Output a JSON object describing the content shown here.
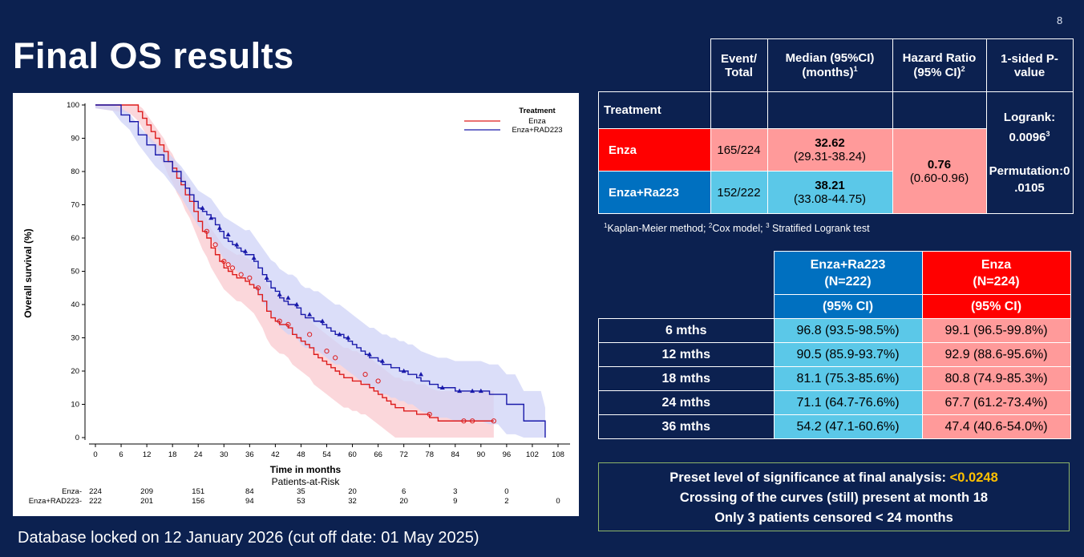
{
  "slide_number": "8",
  "title": "Final OS results",
  "footer": "Database locked on 12 January 2026 (cut off date: 01 May 2025)",
  "colors": {
    "enza": "#dd1c1c",
    "enza_ra": "#1a1aaa",
    "enza_band": "#f9c9cf",
    "enza_ra_band": "#cfd3f7",
    "background": "#0c2150"
  },
  "chart_data": {
    "type": "line",
    "title": "",
    "xlabel": "Time in months",
    "ylabel": "Overall survival (%)",
    "xlim": [
      0,
      108
    ],
    "ylim": [
      0,
      100
    ],
    "xticks": [
      0,
      6,
      12,
      18,
      24,
      30,
      36,
      42,
      48,
      54,
      60,
      66,
      72,
      78,
      84,
      90,
      96,
      102,
      108
    ],
    "yticks": [
      0,
      10,
      20,
      30,
      40,
      50,
      60,
      70,
      80,
      90,
      100
    ],
    "legend": {
      "title": "Treatment",
      "position": "top-right"
    },
    "series": [
      {
        "name": "Enza",
        "color": "#dd1c1c",
        "x": [
          0,
          4,
          8,
          10,
          11,
          12,
          13,
          14,
          15,
          16,
          17,
          18,
          19,
          20,
          21,
          22,
          23,
          24,
          25,
          26,
          27,
          28,
          29,
          30,
          31,
          32,
          33,
          34,
          35,
          36,
          37,
          38,
          39,
          40,
          41,
          42,
          43,
          44,
          45,
          46,
          47,
          48,
          49,
          50,
          51,
          52,
          53,
          54,
          55,
          56,
          57,
          58,
          59,
          60,
          61,
          62,
          63,
          64,
          65,
          66,
          67,
          68,
          69,
          70,
          71,
          72,
          73,
          74,
          75,
          76,
          77,
          78,
          80,
          82,
          84,
          86,
          88,
          90,
          92,
          93
        ],
        "y": [
          100,
          100,
          100,
          98,
          96,
          94,
          92,
          90,
          88,
          86,
          83,
          81,
          78,
          76,
          73,
          71,
          68,
          65,
          62,
          60,
          57,
          55,
          53,
          51,
          50,
          49,
          48,
          48,
          47,
          46,
          45,
          43,
          41,
          38,
          36,
          35,
          34,
          34,
          33,
          31,
          30,
          29,
          28,
          27,
          25,
          24,
          23,
          22,
          21,
          20,
          19,
          18,
          18,
          17,
          17,
          16,
          16,
          15,
          14,
          13,
          12,
          11,
          10,
          9,
          9,
          8,
          8,
          8,
          7,
          7,
          7,
          6,
          5,
          5,
          5,
          5,
          5,
          5,
          5,
          5
        ],
        "censored": [
          [
            26,
            62
          ],
          [
            28,
            58
          ],
          [
            30,
            53
          ],
          [
            31,
            52
          ],
          [
            32,
            51
          ],
          [
            34,
            49
          ],
          [
            36,
            48
          ],
          [
            38,
            45
          ],
          [
            43,
            35
          ],
          [
            45,
            34
          ],
          [
            50,
            31
          ],
          [
            54,
            26
          ],
          [
            56,
            24
          ],
          [
            63,
            19
          ],
          [
            66,
            17
          ],
          [
            78,
            7
          ],
          [
            86,
            5
          ],
          [
            88,
            5
          ],
          [
            93,
            5
          ]
        ]
      },
      {
        "name": "Enza+RAD223",
        "color": "#1a1aaa",
        "x": [
          0,
          4,
          6,
          8,
          10,
          12,
          14,
          16,
          18,
          20,
          21,
          22,
          23,
          24,
          25,
          26,
          27,
          28,
          29,
          30,
          31,
          32,
          33,
          34,
          35,
          36,
          37,
          38,
          39,
          40,
          41,
          42,
          43,
          44,
          45,
          46,
          47,
          48,
          49,
          50,
          51,
          52,
          53,
          54,
          55,
          56,
          57,
          58,
          59,
          60,
          61,
          62,
          63,
          64,
          65,
          66,
          67,
          68,
          69,
          70,
          71,
          72,
          73,
          74,
          75,
          76,
          78,
          80,
          82,
          84,
          86,
          88,
          90,
          92,
          94,
          96,
          98,
          100,
          102,
          104,
          105
        ],
        "y": [
          100,
          100,
          97,
          95,
          91,
          88,
          85,
          83,
          80,
          77,
          75,
          73,
          71,
          69,
          68,
          67,
          66,
          64,
          62,
          60,
          59,
          58,
          57,
          56,
          55,
          55,
          53,
          51,
          49,
          47,
          45,
          44,
          42,
          41,
          40,
          40,
          39,
          37,
          36,
          36,
          35,
          35,
          34,
          33,
          32,
          31,
          31,
          30,
          29,
          28,
          27,
          26,
          25,
          24,
          24,
          23,
          22,
          22,
          21,
          21,
          20,
          20,
          19,
          19,
          18,
          17,
          16,
          15,
          15,
          14,
          14,
          14,
          14,
          13,
          13,
          10,
          10,
          5,
          5,
          5,
          0
        ],
        "censored": [
          [
            25,
            69
          ],
          [
            27,
            66
          ],
          [
            29,
            63
          ],
          [
            31,
            61
          ],
          [
            33,
            58
          ],
          [
            35,
            56
          ],
          [
            37,
            54
          ],
          [
            40,
            48
          ],
          [
            43,
            43
          ],
          [
            45,
            42
          ],
          [
            47,
            40
          ],
          [
            50,
            37
          ],
          [
            53,
            35
          ],
          [
            57,
            31
          ],
          [
            59,
            30
          ],
          [
            64,
            25
          ],
          [
            67,
            23
          ],
          [
            72,
            20
          ],
          [
            76,
            19
          ],
          [
            81,
            15
          ],
          [
            85,
            14
          ],
          [
            88,
            14
          ],
          [
            90,
            14
          ]
        ]
      }
    ],
    "risk_table": {
      "title": "Patients-at-Risk",
      "times": [
        0,
        12,
        24,
        36,
        48,
        60,
        72,
        84,
        96,
        108
      ],
      "rows": [
        {
          "label": "Enza-",
          "counts": [
            "224",
            "209",
            "151",
            "84",
            "35",
            "20",
            "6",
            "3",
            "0",
            ""
          ]
        },
        {
          "label": "Enza+RAD223-",
          "counts": [
            "222",
            "201",
            "156",
            "94",
            "53",
            "32",
            "20",
            "9",
            "2",
            "0"
          ]
        }
      ]
    }
  },
  "table1": {
    "headers": {
      "event": [
        "Event/",
        "Total"
      ],
      "median": [
        "Median (95%CI)",
        "(months)"
      ],
      "median_sup": "1",
      "hr": [
        "Hazard Ratio",
        "(95% CI)"
      ],
      "hr_sup": "2",
      "pvalue": [
        "1-sided P-",
        "value"
      ]
    },
    "treatment_label": "Treatment",
    "rows": [
      {
        "name": "Enza",
        "event": "165/224",
        "median": "32.62",
        "median_ci": "(29.31-38.24)"
      },
      {
        "name": "Enza+Ra223",
        "event": "152/222",
        "median": "38.21",
        "median_ci": "(33.08-44.75)"
      }
    ],
    "hr": "0.76",
    "hr_ci": "(0.60-0.96)",
    "logrank": "Logrank:",
    "logrank_value": "0.0096",
    "logrank_sup": "3",
    "permutation": "Permutation:0",
    "permutation_value": ".0105"
  },
  "footnote": {
    "s1": "1",
    "t1": "Kaplan-Meier method; ",
    "s2": "2",
    "t2": "Cox model; ",
    "s3": "3",
    "t3": " Stratified Logrank test"
  },
  "table2": {
    "col_ra": [
      "Enza+Ra223",
      "(N=222)"
    ],
    "col_enza": [
      "Enza",
      "(N=224)"
    ],
    "ci_label": "(95%  CI)",
    "rows": [
      {
        "label": "6 mths",
        "ra": "96.8 (93.5-98.5%)",
        "enza": "99.1 (96.5-99.8%)"
      },
      {
        "label": "12 mths",
        "ra": "90.5 (85.9-93.7%)",
        "enza": "92.9 (88.6-95.6%)"
      },
      {
        "label": "18 mths",
        "ra": "81.1 (75.3-85.6%)",
        "enza": "80.8 (74.9-85.3%)"
      },
      {
        "label": "24 mths",
        "ra": "71.1 (64.7-76.6%)",
        "enza": "67.7 (61.2-73.4%)"
      },
      {
        "label": "36 mths",
        "ra": "54.2 (47.1-60.6%)",
        "enza": "47.4 (40.6-54.0%)"
      }
    ]
  },
  "box": {
    "line1": "Preset level of significance at final analysis: ",
    "line1_value": "<0.0248",
    "line2": "Crossing of the curves (still) present at month 18",
    "line3": "Only 3 patients censored < 24 months"
  }
}
